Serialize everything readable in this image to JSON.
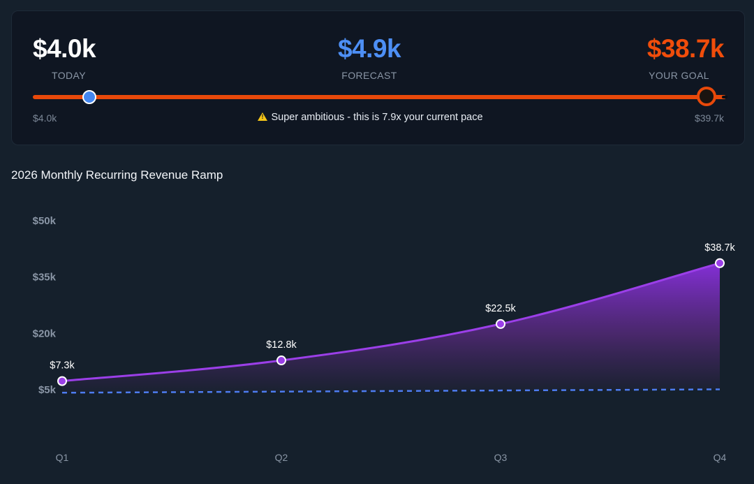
{
  "goal_card": {
    "today": {
      "value": "$4.0k",
      "label": "TODAY"
    },
    "forecast": {
      "value": "$4.9k",
      "label": "FORECAST"
    },
    "goal": {
      "value": "$38.7k",
      "label": "YOUR GOAL"
    },
    "slider": {
      "min_label": "$4.0k",
      "max_label": "$39.7k",
      "min": 4.0,
      "max": 39.7,
      "current": 6.9,
      "goal": 38.7
    },
    "warning_icon": "warning-triangle-icon",
    "warning_text": "Super ambitious - this is 7.9x your current pace"
  },
  "colors": {
    "today": "#ffffff",
    "forecast": "#4d8ff5",
    "goal": "#f04d0b",
    "series_line": "#9b3fe8",
    "baseline": "#4d7cf0"
  },
  "chart_data": {
    "type": "area",
    "title": "2026 Monthly Recurring Revenue Ramp",
    "categories": [
      "Q1",
      "Q2",
      "Q3",
      "Q4"
    ],
    "series": [
      {
        "values": [
          7.3,
          12.8,
          22.5,
          38.7
        ],
        "labels": [
          "$7.3k",
          "$12.8k",
          "$22.5k",
          "$38.7k"
        ],
        "style": "solid-area"
      },
      {
        "values": [
          4.2,
          4.5,
          4.8,
          5.1
        ],
        "style": "dashed"
      }
    ],
    "y_ticks": [
      {
        "value": 50,
        "label": "$50k"
      },
      {
        "value": 35,
        "label": "$35k"
      },
      {
        "value": 20,
        "label": "$20k"
      },
      {
        "value": 5,
        "label": "$5k"
      }
    ],
    "ylim": [
      5,
      50
    ],
    "grid": false,
    "legend": "none"
  }
}
